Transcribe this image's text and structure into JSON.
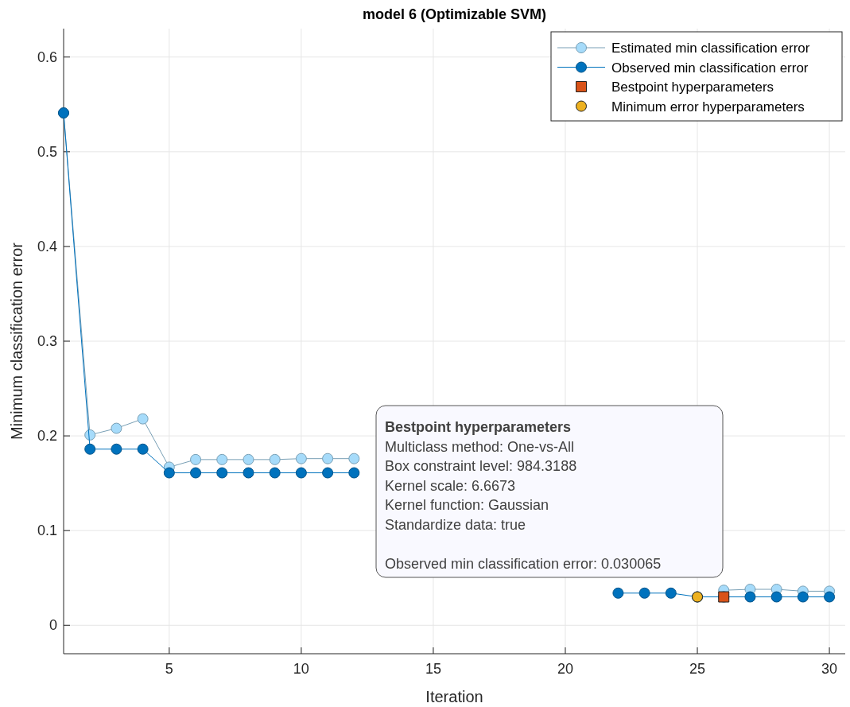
{
  "chart_data": {
    "type": "line",
    "title": "model 6 (Optimizable SVM)",
    "xlabel": "Iteration",
    "ylabel": "Minimum classification error",
    "x": [
      1,
      2,
      3,
      4,
      5,
      6,
      7,
      8,
      9,
      10,
      11,
      12,
      13,
      14,
      15,
      16,
      17,
      18,
      19,
      20,
      21,
      22,
      23,
      24,
      25,
      26,
      27,
      28,
      29,
      30
    ],
    "series": [
      {
        "name": "Estimated min classification error",
        "color": "#a6dbfa",
        "marker": "circle",
        "values": [
          0.541,
          0.201,
          0.208,
          0.218,
          0.167,
          0.175,
          0.175,
          0.175,
          0.175,
          0.176,
          0.176,
          0.176,
          null,
          null,
          null,
          null,
          null,
          null,
          null,
          null,
          null,
          null,
          null,
          null,
          null,
          0.037,
          0.038,
          0.038,
          0.036,
          0.036
        ]
      },
      {
        "name": "Observed min classification error",
        "color": "#0072bd",
        "marker": "circle",
        "values": [
          0.541,
          0.186,
          0.186,
          0.186,
          0.161,
          0.161,
          0.161,
          0.161,
          0.161,
          0.161,
          0.161,
          0.161,
          null,
          null,
          null,
          null,
          null,
          null,
          null,
          null,
          null,
          0.034,
          0.034,
          0.034,
          0.03,
          0.03,
          0.03,
          0.03,
          0.03,
          0.03
        ]
      },
      {
        "name": "Bestpoint hyperparameters",
        "type": "scatter",
        "color": "#d95319",
        "marker": "square",
        "x": [
          26
        ],
        "values": [
          0.03
        ]
      },
      {
        "name": "Minimum error hyperparameters",
        "type": "scatter",
        "color": "#edb120",
        "marker": "circle",
        "x": [
          25
        ],
        "values": [
          0.03
        ]
      }
    ],
    "xlim": [
      1,
      30.6
    ],
    "ylim": [
      -0.03,
      0.63
    ],
    "xticks": [
      5,
      10,
      15,
      20,
      25,
      30
    ],
    "yticks": [
      0,
      0.1,
      0.2,
      0.3,
      0.4,
      0.5,
      0.6
    ],
    "grid": true,
    "legend": "top right",
    "annotations": [
      "Bestpoint hyperparameters",
      "Multiclass method: One-vs-All",
      "Box constraint level: 984.3188",
      "Kernel scale: 6.6673",
      "Kernel function: Gaussian",
      "Standardize data: true",
      "Observed min classification error: 0.030065"
    ]
  }
}
